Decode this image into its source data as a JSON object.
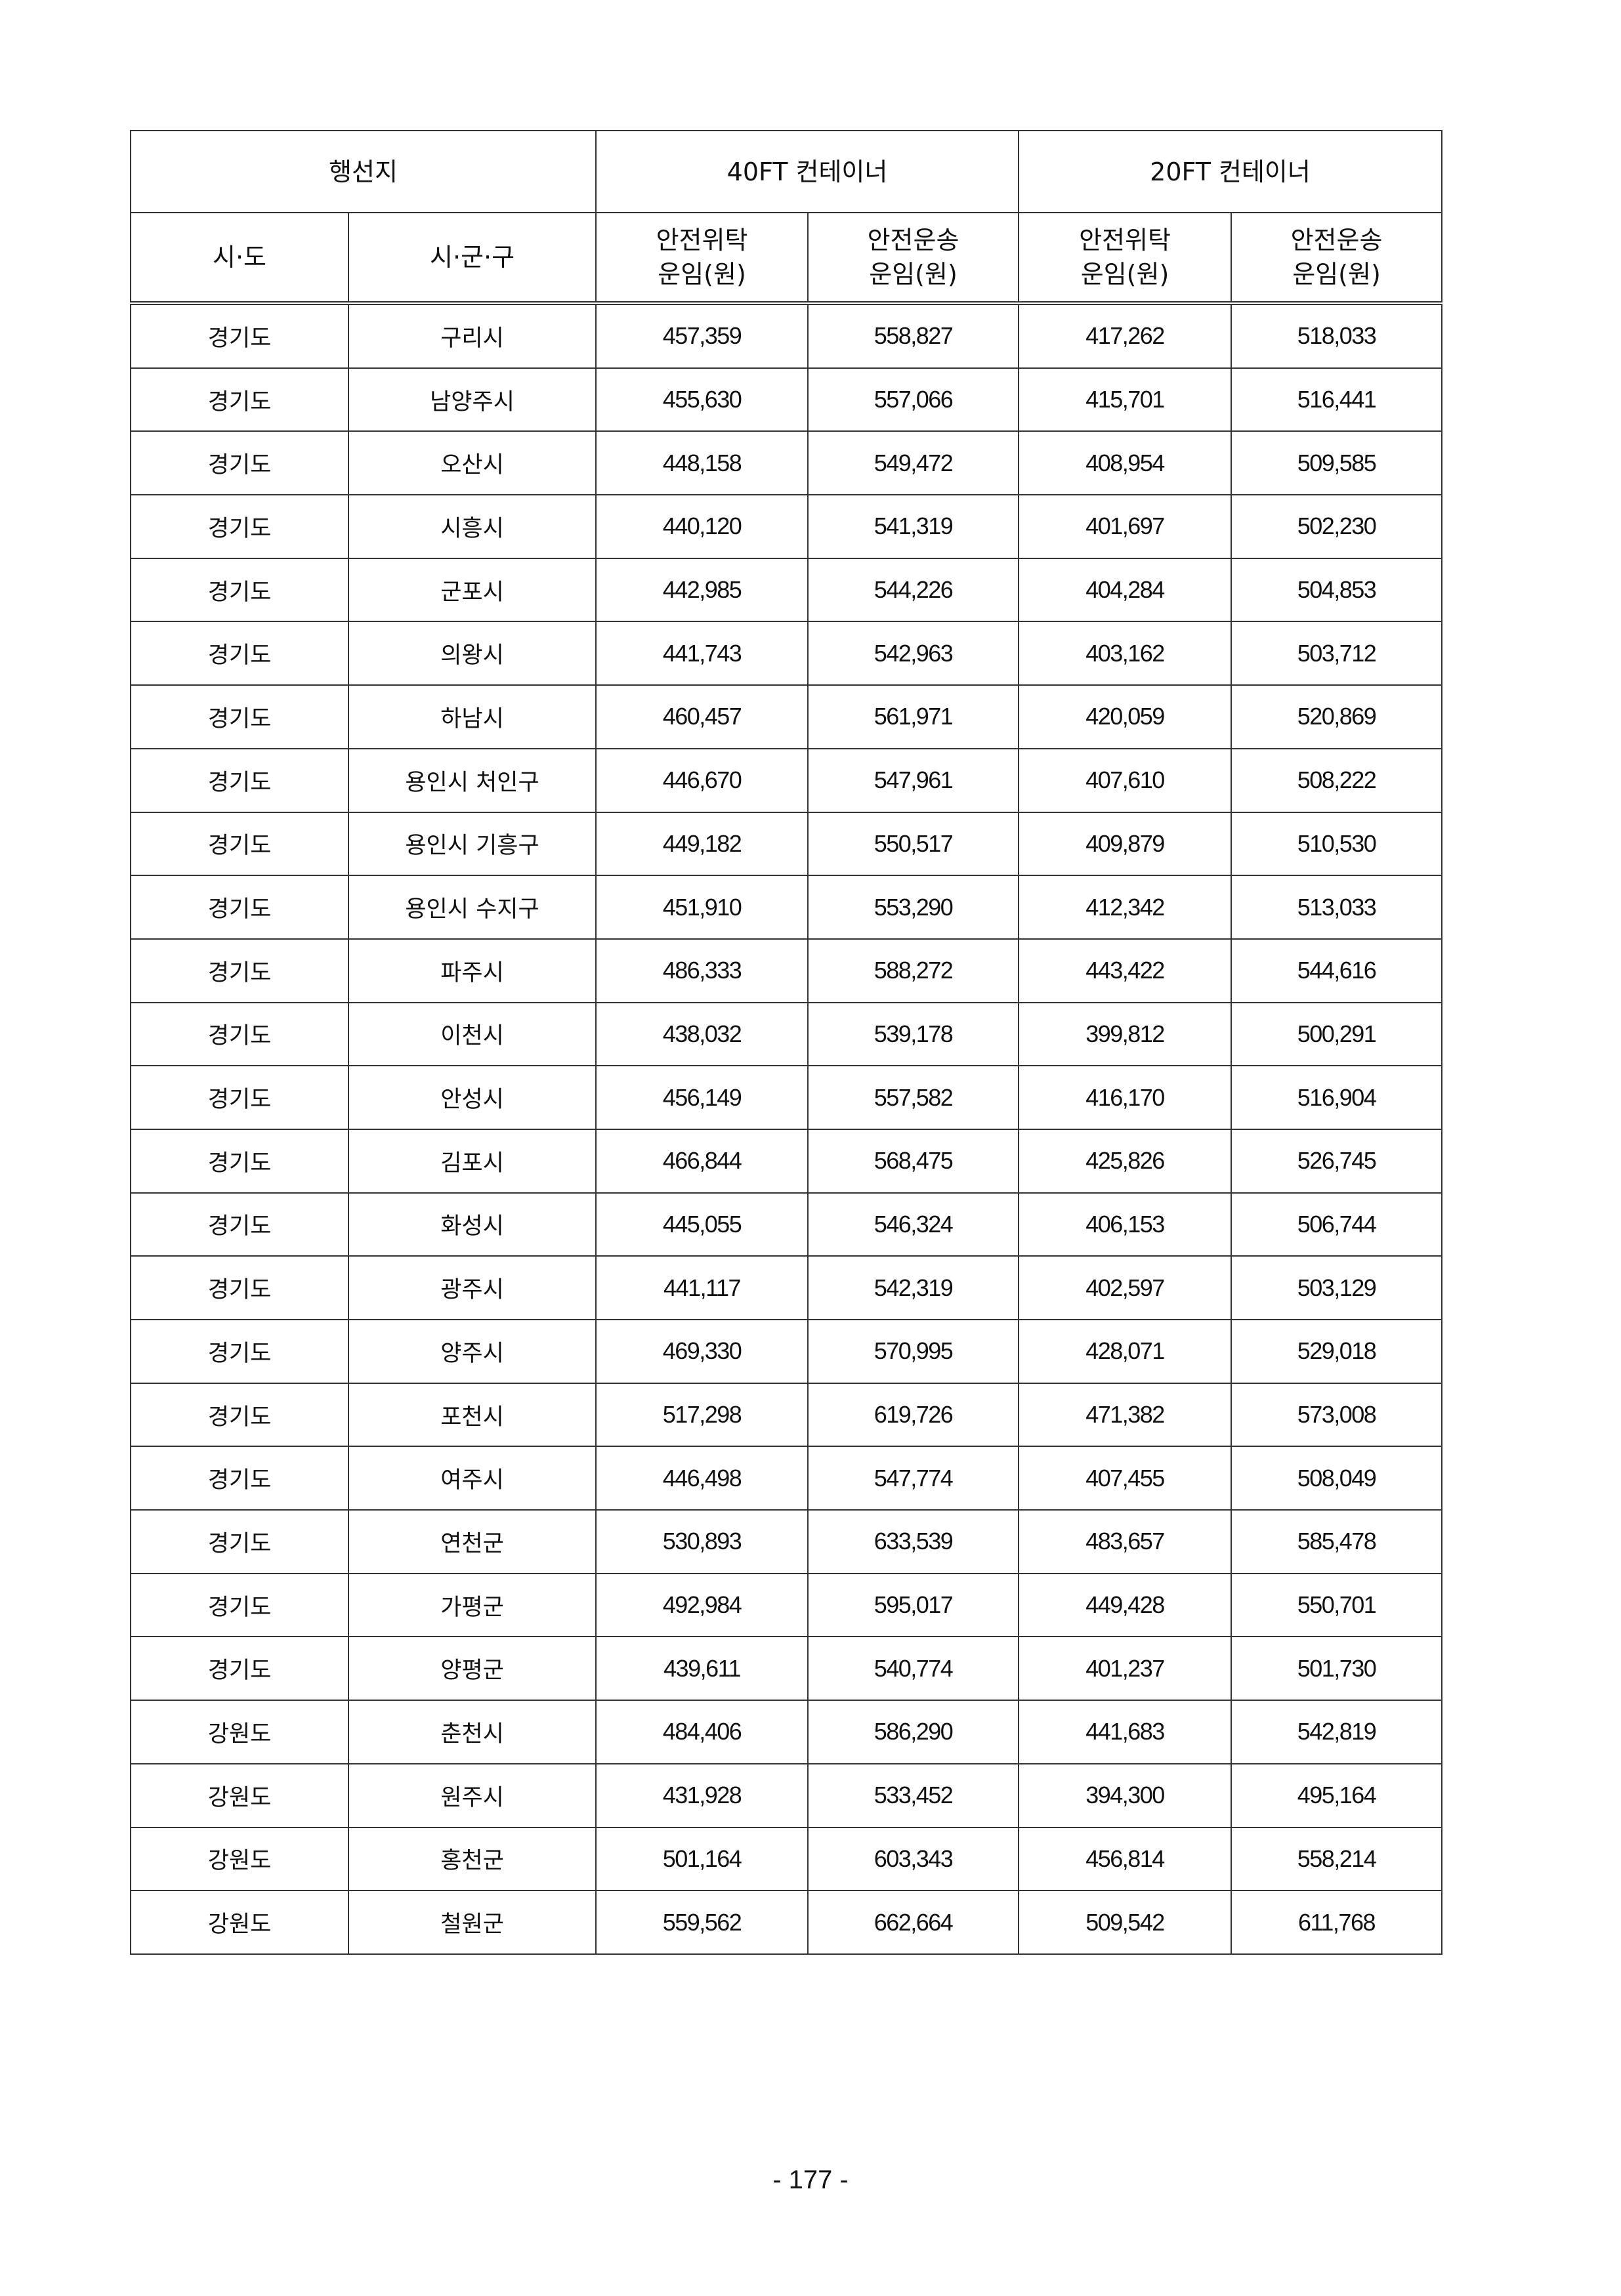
{
  "header": {
    "destination": "행선지",
    "ft40": "40FT 컨테이너",
    "ft20": "20FT 컨테이너",
    "province": "시·도",
    "city": "시·군·구",
    "consign_l1": "안전위탁",
    "consign_l2": "운임(원)",
    "transport_l1": "안전운송",
    "transport_l2": "운임(원)"
  },
  "rows": [
    [
      "경기도",
      "구리시",
      "457,359",
      "558,827",
      "417,262",
      "518,033"
    ],
    [
      "경기도",
      "남양주시",
      "455,630",
      "557,066",
      "415,701",
      "516,441"
    ],
    [
      "경기도",
      "오산시",
      "448,158",
      "549,472",
      "408,954",
      "509,585"
    ],
    [
      "경기도",
      "시흥시",
      "440,120",
      "541,319",
      "401,697",
      "502,230"
    ],
    [
      "경기도",
      "군포시",
      "442,985",
      "544,226",
      "404,284",
      "504,853"
    ],
    [
      "경기도",
      "의왕시",
      "441,743",
      "542,963",
      "403,162",
      "503,712"
    ],
    [
      "경기도",
      "하남시",
      "460,457",
      "561,971",
      "420,059",
      "520,869"
    ],
    [
      "경기도",
      "용인시 처인구",
      "446,670",
      "547,961",
      "407,610",
      "508,222"
    ],
    [
      "경기도",
      "용인시 기흥구",
      "449,182",
      "550,517",
      "409,879",
      "510,530"
    ],
    [
      "경기도",
      "용인시 수지구",
      "451,910",
      "553,290",
      "412,342",
      "513,033"
    ],
    [
      "경기도",
      "파주시",
      "486,333",
      "588,272",
      "443,422",
      "544,616"
    ],
    [
      "경기도",
      "이천시",
      "438,032",
      "539,178",
      "399,812",
      "500,291"
    ],
    [
      "경기도",
      "안성시",
      "456,149",
      "557,582",
      "416,170",
      "516,904"
    ],
    [
      "경기도",
      "김포시",
      "466,844",
      "568,475",
      "425,826",
      "526,745"
    ],
    [
      "경기도",
      "화성시",
      "445,055",
      "546,324",
      "406,153",
      "506,744"
    ],
    [
      "경기도",
      "광주시",
      "441,117",
      "542,319",
      "402,597",
      "503,129"
    ],
    [
      "경기도",
      "양주시",
      "469,330",
      "570,995",
      "428,071",
      "529,018"
    ],
    [
      "경기도",
      "포천시",
      "517,298",
      "619,726",
      "471,382",
      "573,008"
    ],
    [
      "경기도",
      "여주시",
      "446,498",
      "547,774",
      "407,455",
      "508,049"
    ],
    [
      "경기도",
      "연천군",
      "530,893",
      "633,539",
      "483,657",
      "585,478"
    ],
    [
      "경기도",
      "가평군",
      "492,984",
      "595,017",
      "449,428",
      "550,701"
    ],
    [
      "경기도",
      "양평군",
      "439,611",
      "540,774",
      "401,237",
      "501,730"
    ],
    [
      "강원도",
      "춘천시",
      "484,406",
      "586,290",
      "441,683",
      "542,819"
    ],
    [
      "강원도",
      "원주시",
      "431,928",
      "533,452",
      "394,300",
      "495,164"
    ],
    [
      "강원도",
      "홍천군",
      "501,164",
      "603,343",
      "456,814",
      "558,214"
    ],
    [
      "강원도",
      "철원군",
      "559,562",
      "662,664",
      "509,542",
      "611,768"
    ]
  ],
  "page_number": "- 177 -"
}
